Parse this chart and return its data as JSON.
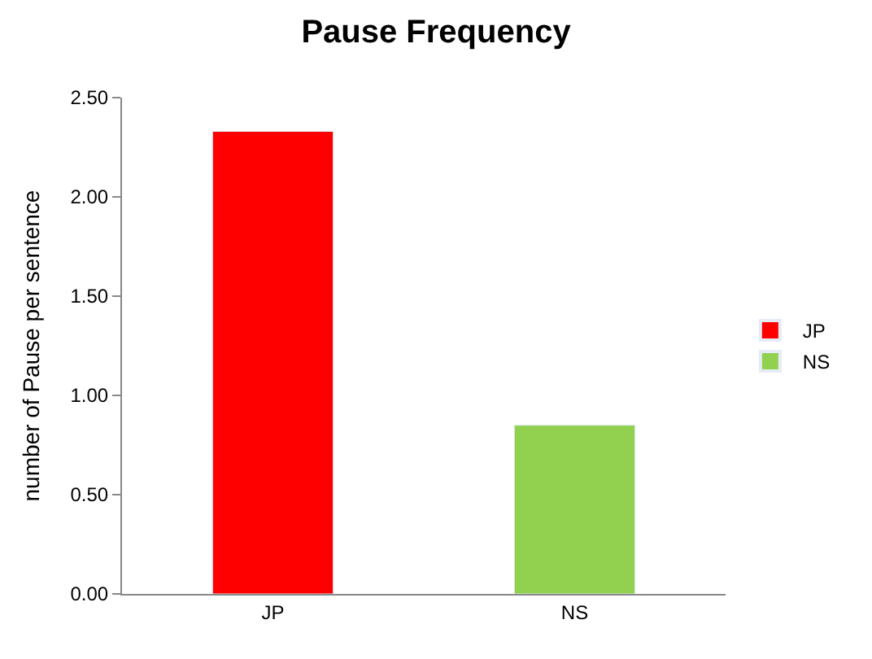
{
  "chart_data": {
    "type": "bar",
    "title": "Pause Frequency",
    "ylabel": "number of Pause per sentence",
    "categories": [
      "JP",
      "NS"
    ],
    "series": [
      {
        "name": "JP",
        "color": "#ff0000",
        "values": [
          2.33,
          null
        ]
      },
      {
        "name": "NS",
        "color": "#92d050",
        "values": [
          null,
          0.85
        ]
      }
    ],
    "ylim": [
      0,
      2.5
    ],
    "yticks": [
      {
        "value": 0,
        "label": "0.00"
      },
      {
        "value": 0.5,
        "label": "0.50"
      },
      {
        "value": 1,
        "label": "1.00"
      },
      {
        "value": 1.5,
        "label": "1.50"
      },
      {
        "value": 2,
        "label": "2.00"
      },
      {
        "value": 2.5,
        "label": "2.50"
      }
    ],
    "legend": "right"
  }
}
